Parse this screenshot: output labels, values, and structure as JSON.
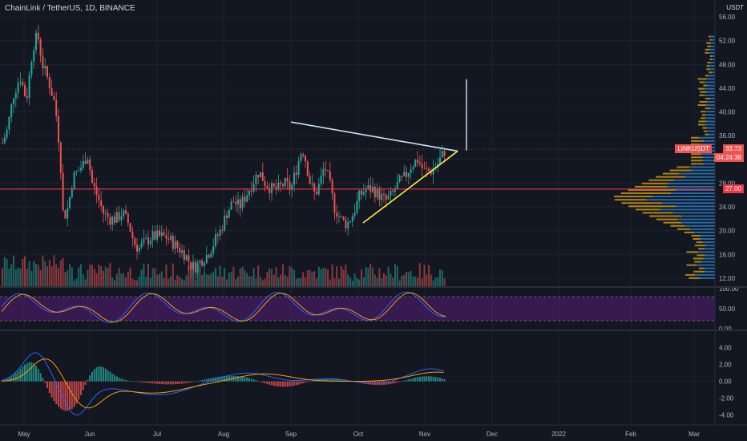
{
  "header": {
    "symbol_title": "ChainLink / TetherUS, 1D, BINANCE",
    "currency": "USDT"
  },
  "price_axis": {
    "ticks": [
      "56.00",
      "52.00",
      "48.00",
      "44.00",
      "40.00",
      "36.00",
      "32.00",
      "28.00",
      "24.00",
      "20.00",
      "16.00",
      "12.00"
    ],
    "min": 10.5,
    "max": 57.5
  },
  "price_tags": {
    "symbol": "LINKUSDT",
    "last_price": "33.73",
    "last_price_value": 33.73,
    "countdown": "04:24:38",
    "level": "27.00",
    "level_value": 27.0,
    "symbol_color": "#ef5350",
    "level_color": "#f23645"
  },
  "stoch_axis": {
    "ticks": [
      "100.00",
      "50.00",
      "0.00"
    ]
  },
  "macd_axis": {
    "ticks": [
      "4.00",
      "2.00",
      "0.00",
      "-2.00",
      "-4.00"
    ]
  },
  "time_axis": {
    "labels": [
      "May",
      "Jun",
      "Jul",
      "Aug",
      "Sep",
      "Oct",
      "Nov",
      "Dec",
      "2022",
      "Feb",
      "Mar"
    ]
  },
  "colors": {
    "background": "#131722",
    "up": "#26a69a",
    "down": "#ef5350",
    "volume_profile_up": "#2a7bbf",
    "volume_profile_down": "#d4a017",
    "stoch_band": "#7b1fa2",
    "macd_line": "#2962ff",
    "signal_line": "#ff9800",
    "trendline_upper": "#c8e6f0",
    "trendline_lower": "#ffeb3b"
  }
}
